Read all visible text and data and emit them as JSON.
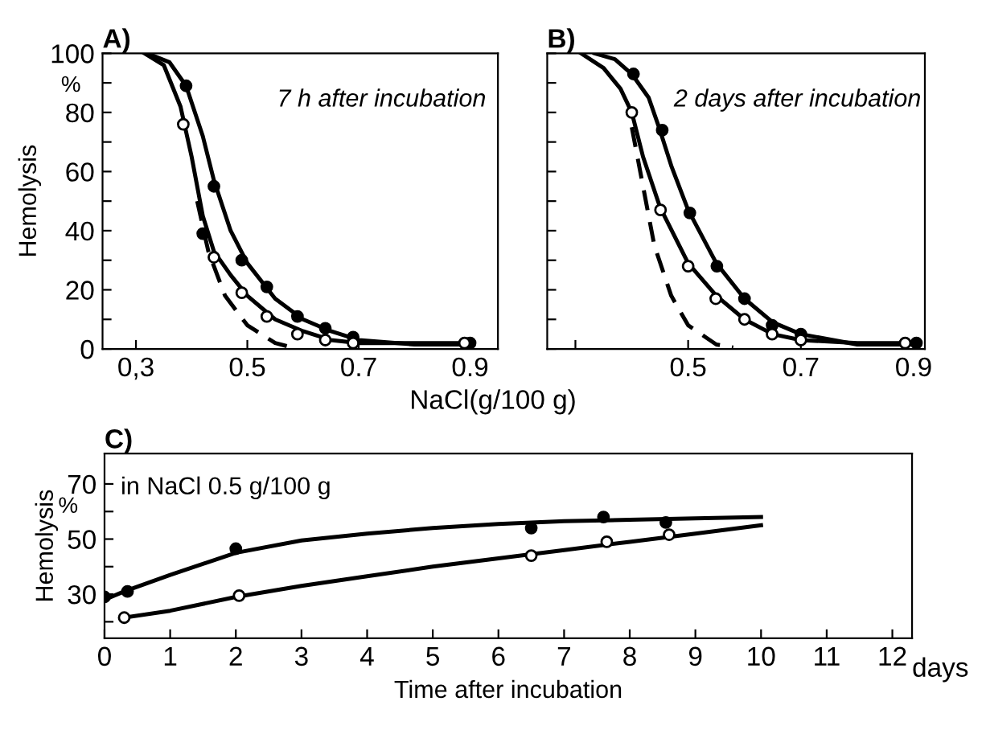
{
  "chart_data": [
    {
      "type": "line",
      "title": "A)",
      "ylabel": "Hemolysis",
      "xlabel": "NaCl(g/100 g)",
      "annotations": [
        "%",
        "7 h after incubation"
      ],
      "xlim": [
        0.24,
        0.95
      ],
      "xticks": [
        {
          "value": 0.3,
          "label": "0,3"
        },
        0.5,
        0.7,
        0.9
      ],
      "ylim": [
        0,
        100
      ],
      "yticks": [
        0,
        {
          "value": 10,
          "label": null
        },
        20,
        {
          "value": 30,
          "label": null
        },
        40,
        {
          "value": 50,
          "label": null
        },
        60,
        {
          "value": 70,
          "label": null
        },
        80,
        {
          "value": 90,
          "label": null
        },
        100
      ],
      "grid": false,
      "series": [
        {
          "color": "#000000",
          "line_style": "solid",
          "x": [
            0.32,
            0.36,
            0.39,
            0.42,
            0.44,
            0.47,
            0.5,
            0.55,
            0.6,
            0.65,
            0.7,
            0.8,
            0.9
          ],
          "values": [
            100,
            97,
            89,
            72,
            57,
            40,
            29,
            17,
            10,
            6,
            3,
            1.5,
            1.5
          ]
        },
        {
          "color": "#000000",
          "line_style": "solid",
          "x": [
            0.315,
            0.35,
            0.38,
            0.4,
            0.42,
            0.44,
            0.47,
            0.5,
            0.55,
            0.6,
            0.65,
            0.7,
            0.88
          ],
          "values": [
            100,
            96,
            82,
            65,
            45,
            33,
            25,
            18,
            10,
            6,
            3,
            2,
            2
          ]
        },
        {
          "color": "#000000",
          "line_style": "dashed",
          "x": [
            0.41,
            0.43,
            0.46,
            0.5,
            0.55,
            0.58
          ],
          "values": [
            50,
            33,
            18,
            8,
            2,
            0.5
          ]
        },
        {
          "type": "scatter",
          "marker": "circle",
          "color": "#000000",
          "x": [
            0.39,
            0.42,
            0.44,
            0.49,
            0.535,
            0.59,
            0.64,
            0.69,
            0.9
          ],
          "values": [
            89,
            39,
            55,
            30,
            21,
            11,
            7,
            4,
            2
          ]
        },
        {
          "type": "scatter",
          "marker": "circle",
          "color": "#ffffff",
          "x": [
            0.385,
            0.44,
            0.49,
            0.535,
            0.59,
            0.64,
            0.69,
            0.89
          ],
          "values": [
            76,
            31,
            19,
            11,
            5,
            3,
            2,
            2
          ]
        }
      ]
    },
    {
      "type": "line",
      "title": "B)",
      "annotations": [
        "2 days after incubation"
      ],
      "xlim": [
        0.25,
        0.92
      ],
      "xticks": [
        {
          "value": 0.3,
          "label": null
        },
        0.5,
        0.7,
        0.9
      ],
      "ylim": [
        0,
        100
      ],
      "yticks": [
        {
          "value": 0,
          "label": null
        },
        {
          "value": 10,
          "label": null
        },
        {
          "value": 20,
          "label": null
        },
        {
          "value": 30,
          "label": null
        },
        {
          "value": 40,
          "label": null
        },
        {
          "value": 50,
          "label": null
        },
        {
          "value": 60,
          "label": null
        },
        {
          "value": 70,
          "label": null
        },
        {
          "value": 80,
          "label": null
        },
        {
          "value": 90,
          "label": null
        },
        {
          "value": 100,
          "label": null
        }
      ],
      "tick_labels": "x",
      "grid": false,
      "series": [
        {
          "color": "#000000",
          "line_style": "solid",
          "x": [
            0.334,
            0.37,
            0.4,
            0.43,
            0.45,
            0.47,
            0.5,
            0.55,
            0.6,
            0.65,
            0.7,
            0.8,
            0.9
          ],
          "values": [
            100,
            98,
            93,
            85,
            74,
            62,
            47,
            29,
            17,
            9,
            5,
            1.5,
            1.5
          ]
        },
        {
          "color": "#000000",
          "line_style": "solid",
          "x": [
            0.31,
            0.35,
            0.38,
            0.4,
            0.42,
            0.45,
            0.5,
            0.55,
            0.6,
            0.65,
            0.7,
            0.8,
            0.88
          ],
          "values": [
            100,
            95,
            88,
            80,
            65,
            48,
            29,
            18,
            10,
            5,
            3,
            2,
            2
          ]
        },
        {
          "color": "#000000",
          "line_style": "dashed",
          "x": [
            0.4,
            0.42,
            0.44,
            0.47,
            0.5,
            0.55,
            0.58
          ],
          "values": [
            75,
            55,
            35,
            18,
            8,
            1.5,
            0.5
          ]
        },
        {
          "type": "scatter",
          "marker": "circle",
          "color": "#000000",
          "x": [
            0.403,
            0.454,
            0.503,
            0.551,
            0.6,
            0.649,
            0.7,
            0.905
          ],
          "values": [
            93,
            74,
            46,
            28,
            17,
            8,
            5,
            2
          ]
        },
        {
          "type": "scatter",
          "marker": "circle",
          "color": "#ffffff",
          "x": [
            0.4,
            0.451,
            0.5,
            0.549,
            0.6,
            0.649,
            0.7,
            0.885
          ],
          "values": [
            80,
            47,
            28,
            17,
            10,
            5,
            3,
            2
          ]
        }
      ]
    },
    {
      "type": "line",
      "title": "C)",
      "ylabel": "Hemolysis",
      "xlabel": "Time after incubation",
      "annotations": [
        "%",
        "in NaCl 0.5 g/100 g",
        "days"
      ],
      "xlim": [
        0,
        12.3
      ],
      "xticks": [
        0,
        1,
        2,
        3,
        4,
        5,
        6,
        7,
        8,
        9,
        10,
        11,
        12
      ],
      "ylim": [
        14,
        81
      ],
      "yticks": [
        {
          "value": 20,
          "label": null
        },
        30,
        {
          "value": 40,
          "label": null
        },
        50,
        {
          "value": 60,
          "label": null
        },
        70
      ],
      "grid": false,
      "series": [
        {
          "color": "#000000",
          "line_style": "solid",
          "x": [
            0,
            0.3,
            1,
            2,
            3,
            4,
            5,
            6,
            7,
            8,
            9,
            10
          ],
          "values": [
            28,
            31,
            37,
            45,
            49.5,
            52,
            54,
            55.5,
            56.5,
            57,
            57.5,
            58
          ]
        },
        {
          "color": "#000000",
          "line_style": "solid",
          "x": [
            0.3,
            1,
            2,
            3,
            4,
            5,
            6,
            7,
            8,
            9,
            10
          ],
          "values": [
            21.5,
            24,
            29,
            33,
            36.5,
            40,
            43,
            46,
            49,
            52,
            55
          ]
        },
        {
          "type": "scatter",
          "marker": "circle",
          "color": "#000000",
          "x": [
            0,
            0.35,
            2,
            6.5,
            7.6,
            8.55
          ],
          "values": [
            29,
            31,
            46.5,
            54,
            58,
            56
          ]
        },
        {
          "type": "scatter",
          "marker": "circle",
          "color": "#ffffff",
          "x": [
            0.3,
            2.05,
            6.5,
            7.65,
            8.6
          ],
          "values": [
            21.5,
            29.5,
            44,
            49,
            51.6
          ]
        }
      ]
    }
  ]
}
